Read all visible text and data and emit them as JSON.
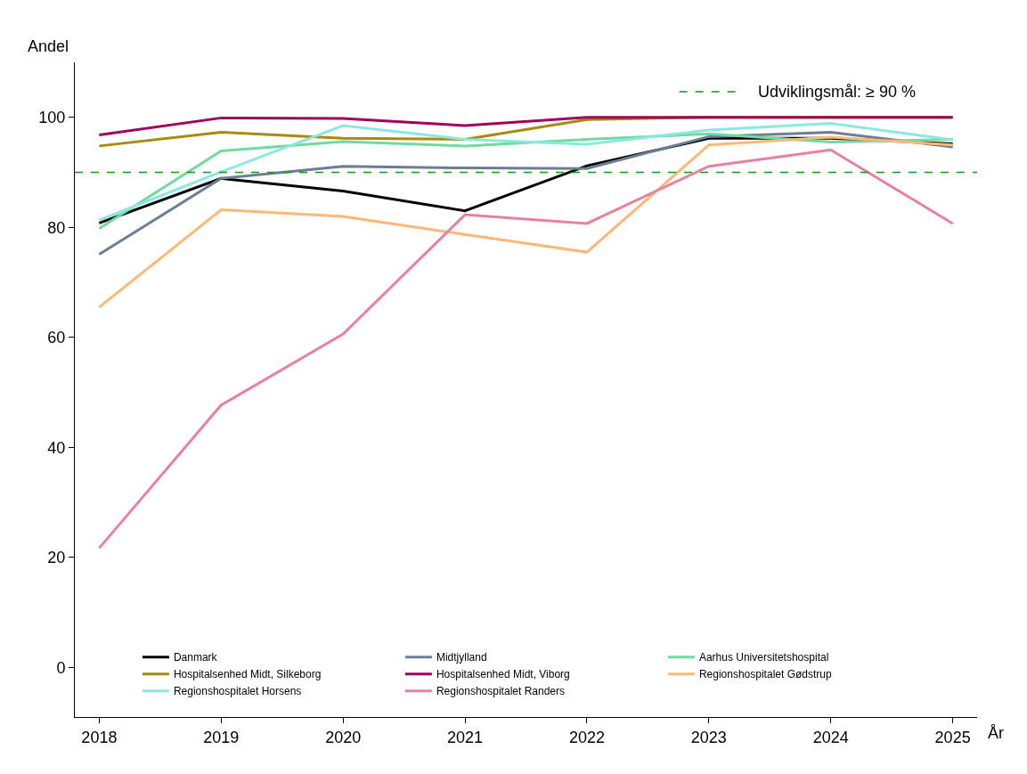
{
  "chart_data": {
    "type": "line",
    "ylabel": "Andel",
    "xlabel": "År",
    "x": [
      2018,
      2019,
      2020,
      2021,
      2022,
      2023,
      2024,
      2025
    ],
    "xlim": [
      2017.8,
      2025.2
    ],
    "xticks": [
      2018,
      2019,
      2020,
      2021,
      2022,
      2023,
      2024,
      2025
    ],
    "ylim": [
      -9,
      110
    ],
    "yticks": [
      0,
      20,
      40,
      60,
      80,
      100
    ],
    "legend": "bottom",
    "marker": "none",
    "line_style": "solid",
    "series": [
      {
        "name": "Danmark",
        "color": "#000000",
        "values": [
          80.8,
          88.9,
          86.6,
          83.0,
          91.2,
          96.2,
          96.2,
          95.2
        ]
      },
      {
        "name": "Midtjylland",
        "color": "#6a7f94",
        "values": [
          75.1,
          88.9,
          91.1,
          90.8,
          90.7,
          96.5,
          97.3,
          94.6
        ]
      },
      {
        "name": "Aarhus Universitetshospital",
        "color": "#72d9a0",
        "values": [
          79.8,
          93.9,
          95.6,
          94.8,
          96.0,
          97.0,
          95.5,
          96.0
        ]
      },
      {
        "name": "Hospitalsenhed Midt, Silkeborg",
        "color": "#a88a0c",
        "values": [
          94.8,
          97.3,
          96.2,
          96.0,
          99.6,
          100,
          100,
          100
        ]
      },
      {
        "name": "Hospitalsenhed Midt, Viborg",
        "color": "#a0005a",
        "values": [
          96.8,
          99.9,
          99.8,
          98.5,
          100,
          100,
          100,
          100
        ]
      },
      {
        "name": "Regionshospitalet Gødstrup",
        "color": "#ffb877",
        "values": [
          65.5,
          83.2,
          82.0,
          78.7,
          75.5,
          95.0,
          96.4,
          95.0
        ]
      },
      {
        "name": "Regionshospitalet Horsens",
        "color": "#8ae8e0",
        "values": [
          81.3,
          90.1,
          98.5,
          96.0,
          95.1,
          97.7,
          98.9,
          95.9
        ]
      },
      {
        "name": "Regionshospitalet Randers",
        "color": "#e8819f",
        "values": [
          21.7,
          47.7,
          60.6,
          82.3,
          80.7,
          91.1,
          94.1,
          80.7
        ]
      }
    ],
    "ref_lines": [
      {
        "axis": "y",
        "value": 90,
        "label": "Udviklingsmål: ≥ 90 %",
        "color": "#228b22",
        "line_style": "dashed"
      }
    ]
  }
}
